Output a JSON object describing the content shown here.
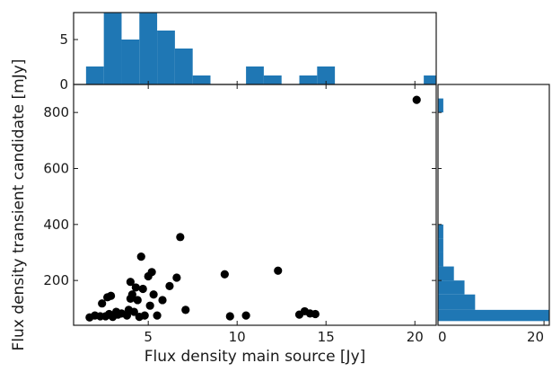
{
  "chart_data": [
    {
      "type": "scatter",
      "xlabel": "Flux density main source [Jy]",
      "ylabel": "Flux density transient candidate [mJy]",
      "xlim": [
        0.8,
        21.2
      ],
      "ylim": [
        40,
        900
      ],
      "xticks": [
        5,
        10,
        15,
        20
      ],
      "yticks": [
        200,
        400,
        600,
        800
      ],
      "color": "#000000",
      "points": [
        [
          1.7,
          68
        ],
        [
          2.0,
          75
        ],
        [
          2.3,
          72
        ],
        [
          2.4,
          118
        ],
        [
          2.6,
          72
        ],
        [
          2.7,
          140
        ],
        [
          2.8,
          80
        ],
        [
          2.9,
          145
        ],
        [
          3.0,
          70
        ],
        [
          3.2,
          88
        ],
        [
          3.3,
          78
        ],
        [
          3.5,
          82
        ],
        [
          3.8,
          75
        ],
        [
          3.9,
          95
        ],
        [
          4.0,
          195
        ],
        [
          4.0,
          135
        ],
        [
          4.1,
          150
        ],
        [
          4.2,
          88
        ],
        [
          4.3,
          175
        ],
        [
          4.4,
          130
        ],
        [
          4.5,
          70
        ],
        [
          4.6,
          285
        ],
        [
          4.7,
          170
        ],
        [
          4.8,
          75
        ],
        [
          5.0,
          215
        ],
        [
          5.1,
          110
        ],
        [
          5.2,
          230
        ],
        [
          5.3,
          150
        ],
        [
          5.5,
          75
        ],
        [
          5.8,
          130
        ],
        [
          6.2,
          180
        ],
        [
          6.6,
          210
        ],
        [
          6.8,
          355
        ],
        [
          7.1,
          95
        ],
        [
          9.3,
          222
        ],
        [
          9.6,
          72
        ],
        [
          10.5,
          75
        ],
        [
          12.3,
          235
        ],
        [
          13.5,
          78
        ],
        [
          13.8,
          90
        ],
        [
          14.1,
          82
        ],
        [
          14.4,
          80
        ],
        [
          20.1,
          845
        ]
      ]
    },
    {
      "type": "bar",
      "orientation": "vertical",
      "role": "x-marginal-histogram",
      "yticks": [
        0,
        5
      ],
      "ylim": [
        0,
        8
      ],
      "color": "#1f77b4",
      "bin_edges": [
        1.5,
        2.5,
        3.5,
        4.5,
        5.5,
        6.5,
        7.5,
        8.5,
        9.5,
        10.5,
        11.5,
        12.5,
        13.5,
        14.5,
        15.5,
        16.5,
        17.5,
        18.5,
        19.5,
        20.5,
        21.2
      ],
      "values": [
        2,
        8,
        5,
        8,
        6,
        4,
        1,
        0,
        0,
        2,
        1,
        0,
        1,
        2,
        0,
        0,
        0,
        0,
        0,
        1
      ]
    },
    {
      "type": "bar",
      "orientation": "horizontal",
      "role": "y-marginal-histogram",
      "xticks": [
        0,
        20
      ],
      "xlim": [
        0,
        21
      ],
      "color": "#1f77b4",
      "bin_edges": [
        55,
        95,
        150,
        200,
        250,
        300,
        350,
        400,
        800,
        850,
        900
      ],
      "values": [
        21,
        7,
        5,
        3,
        1,
        1,
        1,
        0,
        1,
        0
      ]
    }
  ]
}
